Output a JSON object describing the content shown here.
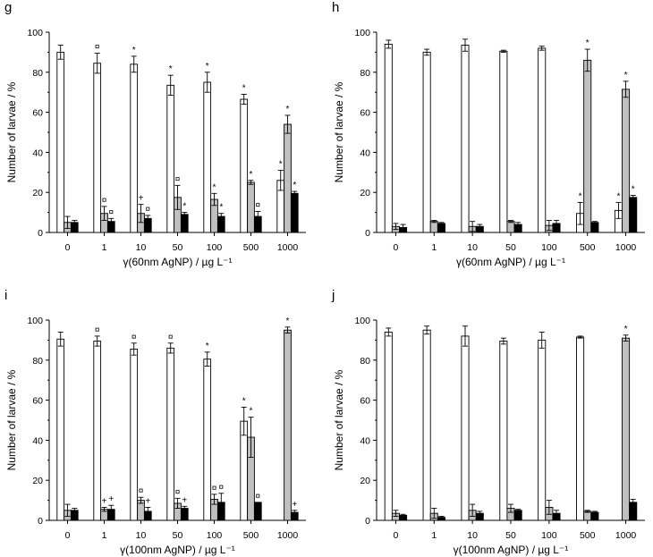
{
  "colors": {
    "bar_1": "#ffffff",
    "bar_2": "#c0c0c0",
    "bar_3": "#000000"
  },
  "chart_data": [
    {
      "type": "bar",
      "panel": "g",
      "categories": [
        "0",
        "1",
        "10",
        "50",
        "100",
        "500",
        "1000"
      ],
      "xlabel": "γ(60nm AgNP) / µg L⁻¹",
      "ylabel": "Number of larvae / %",
      "ylim": [
        0,
        100
      ],
      "yticks": [
        "0",
        "20",
        "40",
        "60",
        "80",
        "100"
      ],
      "series": [
        {
          "values": [
            90,
            84.5,
            84,
            73.5,
            75,
            66.5,
            26
          ],
          "errors": [
            3.5,
            5,
            4,
            5,
            5,
            2.5,
            5
          ],
          "marks": [
            "",
            "¤",
            "*",
            "*",
            "*",
            "*",
            "*"
          ]
        },
        {
          "values": [
            5,
            9.5,
            9.5,
            17.5,
            16.5,
            25,
            54
          ],
          "errors": [
            3,
            3.5,
            4.5,
            6,
            3,
            1,
            4.5
          ],
          "marks": [
            "",
            "¤",
            "+",
            "¤",
            "*",
            "*",
            "*"
          ]
        },
        {
          "values": [
            5,
            5.5,
            7,
            9,
            8,
            8,
            19.5
          ],
          "errors": [
            1,
            1.5,
            1.5,
            1,
            1.5,
            2.5,
            1
          ],
          "marks": [
            "",
            "¤",
            "¤",
            "*",
            "*",
            "¤",
            "*"
          ]
        }
      ]
    },
    {
      "type": "bar",
      "panel": "h",
      "categories": [
        "0",
        "1",
        "10",
        "50",
        "100",
        "500",
        "1000"
      ],
      "xlabel": "γ(60nm AgNP) / µg L⁻¹",
      "ylabel": "Number of larvae / %",
      "ylim": [
        0,
        100
      ],
      "yticks": [
        "0",
        "20",
        "40",
        "60",
        "80",
        "100"
      ],
      "series": [
        {
          "values": [
            94,
            90,
            93.5,
            90.5,
            92,
            9.5,
            11
          ],
          "errors": [
            2,
            1.5,
            3,
            0.5,
            1,
            5.5,
            4
          ],
          "marks": [
            "",
            "",
            "",
            "",
            "",
            "*",
            "*"
          ]
        },
        {
          "values": [
            3,
            5.5,
            3,
            5.5,
            3.5,
            86,
            71.5
          ],
          "errors": [
            1.5,
            0.5,
            2.5,
            0.5,
            2.5,
            5.5,
            4
          ],
          "marks": [
            "",
            "",
            "",
            "",
            "",
            "*",
            "*"
          ]
        },
        {
          "values": [
            2.5,
            4.5,
            3,
            4,
            4.5,
            5,
            17.5
          ],
          "errors": [
            1.5,
            0.5,
            1,
            1,
            1.5,
            0.5,
            1
          ],
          "marks": [
            "",
            "",
            "",
            "",
            "",
            "",
            "*"
          ]
        }
      ]
    },
    {
      "type": "bar",
      "panel": "i",
      "categories": [
        "0",
        "1",
        "10",
        "50",
        "100",
        "500",
        "1000"
      ],
      "xlabel": "γ(100nm AgNP) / µg L⁻¹",
      "ylabel": "Number of larvae / %",
      "ylim": [
        0,
        100
      ],
      "yticks": [
        "0",
        "20",
        "40",
        "60",
        "80",
        "100"
      ],
      "series": [
        {
          "values": [
            90.5,
            89.5,
            85.5,
            86,
            80.5,
            49.5,
            0
          ],
          "errors": [
            3.5,
            2.5,
            3,
            2.5,
            3.5,
            7,
            0
          ],
          "marks": [
            "",
            "¤",
            "¤",
            "¤",
            "*",
            "*",
            ""
          ]
        },
        {
          "values": [
            5,
            5.5,
            10,
            8.5,
            10.5,
            41.5,
            95
          ],
          "errors": [
            3,
            1,
            1.5,
            2.5,
            2.5,
            10,
            1.5
          ],
          "marks": [
            "",
            "+",
            "¤",
            "¤",
            "¤",
            "*",
            "*"
          ]
        },
        {
          "values": [
            5,
            5.5,
            4.5,
            6,
            9,
            9,
            4
          ],
          "errors": [
            1,
            2,
            2,
            1,
            4.5,
            0,
            1
          ],
          "marks": [
            "",
            "+",
            "+",
            "+",
            "¤",
            "¤",
            "+"
          ]
        }
      ]
    },
    {
      "type": "bar",
      "panel": "j",
      "categories": [
        "0",
        "1",
        "10",
        "50",
        "100",
        "500",
        "1000"
      ],
      "xlabel": "γ(100nm AgNP) / µg L⁻¹",
      "ylabel": "Number of larvae / %",
      "ylim": [
        0,
        100
      ],
      "yticks": [
        "0",
        "20",
        "40",
        "60",
        "80",
        "100"
      ],
      "series": [
        {
          "values": [
            94,
            95,
            92,
            89.5,
            90,
            91.5,
            0
          ],
          "errors": [
            2,
            2,
            5,
            1.5,
            4,
            0.5,
            0
          ],
          "marks": [
            "",
            "",
            "",
            "",
            "",
            "",
            ""
          ]
        },
        {
          "values": [
            3.5,
            3.5,
            5,
            6,
            6.5,
            4.5,
            91
          ],
          "errors": [
            1.5,
            2.5,
            3,
            2,
            3.5,
            0.5,
            1.5
          ],
          "marks": [
            "",
            "",
            "",
            "",
            "",
            "",
            "*"
          ]
        },
        {
          "values": [
            2.5,
            1.5,
            3.5,
            5,
            3.5,
            4,
            9
          ],
          "errors": [
            0.5,
            0.5,
            1,
            0.5,
            1.5,
            0.5,
            1.5
          ],
          "marks": [
            "",
            "",
            "",
            "",
            "",
            "",
            ""
          ]
        }
      ]
    }
  ]
}
